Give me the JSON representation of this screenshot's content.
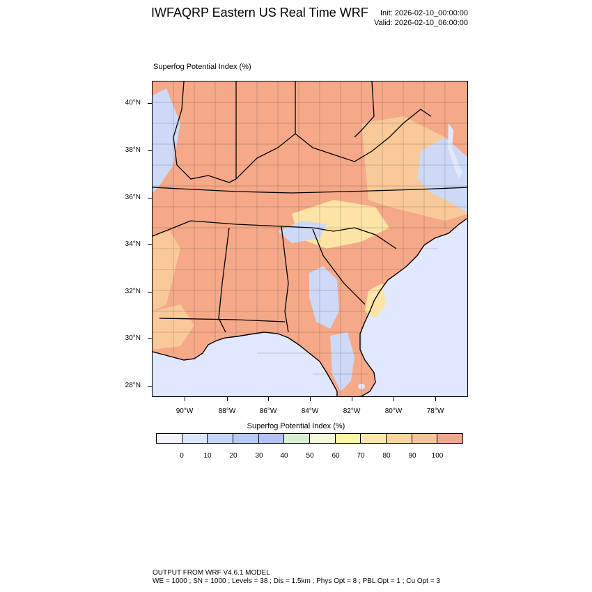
{
  "header": {
    "title": "IWFAQRP Eastern US Real Time WRF",
    "init": "Init: 2026-02-10_00:00:00",
    "valid": "Valid: 2026-02-10_06:00:00"
  },
  "field_label": "Superfog Potential Index   (%)",
  "map": {
    "lat_labels": [
      "40°N",
      "38°N",
      "36°N",
      "34°N",
      "32°N",
      "30°N",
      "28°N"
    ],
    "lon_labels": [
      "90°W",
      "88°W",
      "86°W",
      "84°W",
      "82°W",
      "80°W",
      "78°W"
    ],
    "colors": {
      "water": "#e1e8fd",
      "land_high": "#f5a989",
      "land_mid": "#f8c999",
      "land_yellow": "#fbe4a5",
      "land_low": "#cdd9f6",
      "border": "#000000"
    }
  },
  "colorbar": {
    "title": "Superfog Potential Index  (%)",
    "colors": [
      "#f4f6fb",
      "#dce5fa",
      "#c6d4f8",
      "#b9c9f5",
      "#b3c1f4",
      "#d9eed0",
      "#f6f9d9",
      "#fbf8a2",
      "#fbe7a9",
      "#f8d69b",
      "#f7c498",
      "#f3a68f"
    ],
    "labels": [
      "0",
      "10",
      "20",
      "30",
      "40",
      "50",
      "60",
      "70",
      "80",
      "90",
      "100"
    ]
  },
  "footer": {
    "line1": "OUTPUT FROM WRF V4.6.1 MODEL",
    "line2": "WE = 1000 ; SN = 1000 ; Levels = 38 ; Dis = 1.5km ; Phys Opt = 8 ; PBL Opt = 1 ; Cu Opt = 3"
  }
}
